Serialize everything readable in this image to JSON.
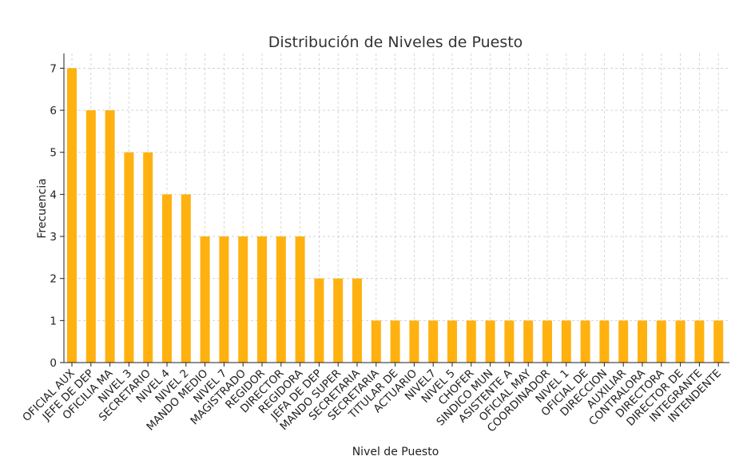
{
  "chart_data": {
    "type": "bar",
    "title": "Distribución de Niveles de Puesto",
    "xlabel": "Nivel de Puesto",
    "ylabel": "Frecuencia",
    "ylim": [
      0,
      7.35
    ],
    "yticks": [
      0,
      1,
      2,
      3,
      4,
      5,
      6,
      7
    ],
    "grid": true,
    "bar_color": "#FFB10F",
    "categories": [
      "OFICIAL AUX",
      "JEFE DE DEP",
      "OFICILIA MA",
      "NIVEL 3",
      "SECRETARIO",
      "NIVEL 4",
      "NIVEL 2",
      "MANDO MEDIO",
      "NIVEL 7",
      "MAGISTRADO",
      "REGIDOR",
      "DIRECTOR",
      "REGIDORA",
      "JEFA DE DEP",
      "MANDO SUPER",
      "SECRETARIA",
      "SECRETARIA",
      "TITULAR DE",
      "ACTUARIO",
      "NIVEL7",
      "NIVEL 5",
      "CHOFER",
      "SINDICO MUN",
      "ASISTENTE A",
      "OFICIAL MAY",
      "COORDINADOR",
      "NIVEL 1",
      "OFICIAL DE",
      "DIRECCION",
      "AUXILIAR",
      "CONTRALORA",
      "DIRECTORA",
      "DIRECTOR DE",
      "INTEGRANTE",
      "INTENDENTE"
    ],
    "values": [
      7,
      6,
      6,
      5,
      5,
      4,
      4,
      3,
      3,
      3,
      3,
      3,
      3,
      2,
      2,
      2,
      1,
      1,
      1,
      1,
      1,
      1,
      1,
      1,
      1,
      1,
      1,
      1,
      1,
      1,
      1,
      1,
      1,
      1,
      1
    ]
  }
}
